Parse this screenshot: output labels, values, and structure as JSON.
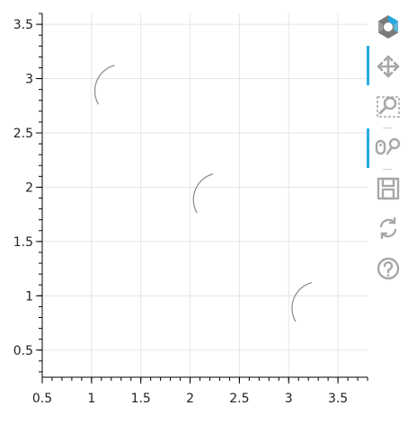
{
  "chart_data": {
    "type": "scatter",
    "title": "",
    "xlabel": "",
    "ylabel": "",
    "xlim": [
      0.5,
      3.8
    ],
    "ylim": [
      0.25,
      3.6
    ],
    "grid": true,
    "x_ticks": [
      0.5,
      1,
      1.5,
      2,
      2.5,
      3,
      3.5
    ],
    "x_tick_labels": [
      "0.5",
      "1",
      "1.5",
      "2",
      "2.5",
      "3",
      "3.5"
    ],
    "y_ticks": [
      0.5,
      1,
      1.5,
      2,
      2.5,
      3,
      3.5
    ],
    "y_tick_labels": [
      "0.5",
      "1",
      "1.5",
      "2",
      "2.5",
      "3",
      "3.5"
    ],
    "series": [
      {
        "glyph": "arc",
        "x": [
          1,
          2,
          3
        ],
        "y": [
          3,
          2,
          1
        ],
        "radius": 0.27,
        "start_angle_deg": 30,
        "end_angle_deg": 285,
        "color": "#8a8a8a"
      }
    ]
  },
  "toolbar": {
    "logo": "bokeh-logo-icon",
    "tools": [
      {
        "name": "pan-tool",
        "icon": "move-arrows-icon",
        "active": true
      },
      {
        "name": "box-zoom-tool",
        "icon": "box-zoom-icon",
        "active": false
      },
      {
        "name": "wheel-zoom-tool",
        "icon": "wheel-zoom-icon",
        "active": true
      },
      {
        "name": "save-tool",
        "icon": "save-disk-icon",
        "active": false
      },
      {
        "name": "reset-tool",
        "icon": "reset-arrows-icon",
        "active": false
      },
      {
        "name": "help-tool",
        "icon": "help-question-icon",
        "active": false
      }
    ],
    "accent": "#26aae1",
    "icon_color": "#a7a7a7"
  }
}
